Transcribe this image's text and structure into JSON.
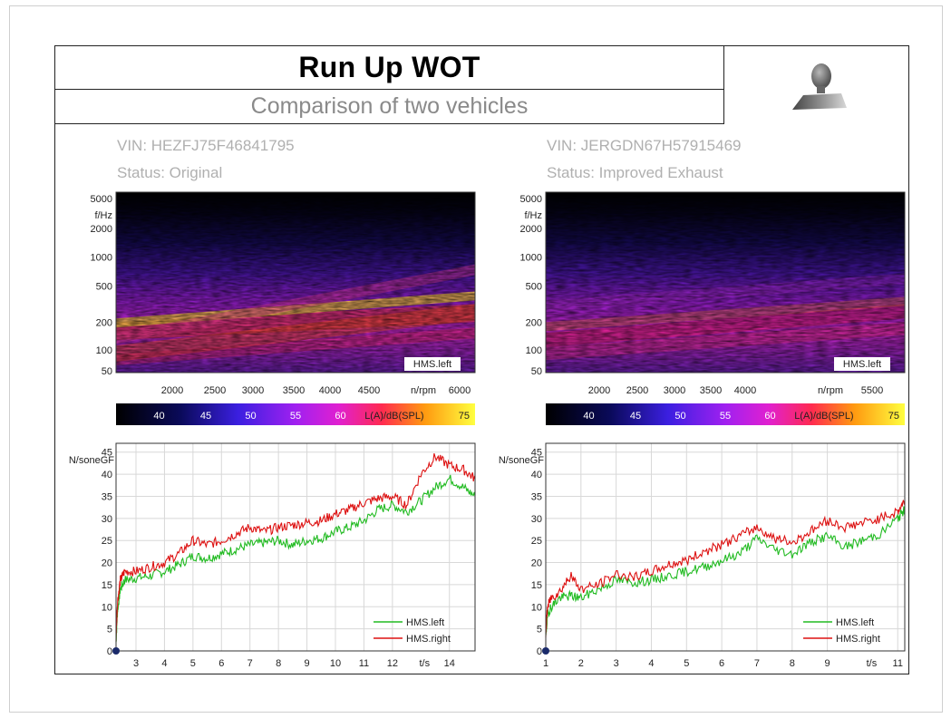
{
  "report": {
    "title": "Run Up WOT",
    "subtitle": "Comparison of two vehicles"
  },
  "vehicles": [
    {
      "vin": "VIN: HEZFJ75F46841795",
      "status": "Status: Original"
    },
    {
      "vin": "VIN: JERGDN67H57915469",
      "status": "Status: Improved Exhaust"
    }
  ],
  "colorbar": {
    "ticks": [
      "40",
      "45",
      "50",
      "55",
      "60"
    ],
    "unit_label": "L(A)/dB(SPL)",
    "max_label": "75"
  },
  "chart_data": [
    {
      "type": "heatmap",
      "panel": "left",
      "channel_label": "HMS.left",
      "ylabel": "f/Hz",
      "yticks": [
        "5000",
        "2000",
        "1000",
        "500",
        "200",
        "100",
        "50"
      ],
      "xlabel": "n/rpm",
      "xticks": [
        "2000",
        "2500",
        "3000",
        "3500",
        "4000",
        "4500",
        "6000"
      ],
      "zrange": [
        35,
        75
      ],
      "zunit": "L(A)/dB(SPL)"
    },
    {
      "type": "heatmap",
      "panel": "right",
      "channel_label": "HMS.left",
      "ylabel": "f/Hz",
      "yticks": [
        "5000",
        "2000",
        "1000",
        "500",
        "200",
        "100",
        "50"
      ],
      "xlabel": "n/rpm",
      "xticks": [
        "2000",
        "2500",
        "3000",
        "3500",
        "4000",
        "5500"
      ],
      "zrange": [
        35,
        75
      ],
      "zunit": "L(A)/dB(SPL)"
    },
    {
      "type": "line",
      "panel": "left",
      "ylabel": "N/soneGF",
      "xlabel": "t/s",
      "yticks": [
        "0",
        "5",
        "10",
        "15",
        "20",
        "25",
        "30",
        "35",
        "40",
        "45"
      ],
      "xticks": [
        "3",
        "4",
        "5",
        "6",
        "7",
        "8",
        "9",
        "10",
        "11",
        "12",
        "14"
      ],
      "xlim": [
        2.3,
        14.9
      ],
      "ylim": [
        0,
        47
      ],
      "grid": true,
      "legend": "bottom-right",
      "series": [
        {
          "name": "HMS.left",
          "color": "#22bb22",
          "x": [
            2.3,
            2.35,
            2.45,
            2.6,
            3,
            3.5,
            4,
            4.5,
            5,
            5.5,
            6,
            6.5,
            7,
            7.5,
            8,
            8.5,
            9,
            9.5,
            10,
            10.5,
            11,
            11.5,
            12,
            12.5,
            13,
            13.5,
            14,
            14.5,
            14.9
          ],
          "y": [
            2,
            9,
            14,
            16,
            16.5,
            17,
            18,
            19.5,
            21.5,
            21,
            22,
            23,
            24,
            24.5,
            25,
            24,
            25,
            25.5,
            27,
            28,
            29.5,
            32,
            33,
            31.5,
            34,
            37,
            39,
            37,
            35
          ]
        },
        {
          "name": "HMS.right",
          "color": "#dd1111",
          "x": [
            2.3,
            2.35,
            2.45,
            2.6,
            3,
            3.5,
            4,
            4.5,
            5,
            5.5,
            6,
            6.5,
            7,
            7.5,
            8,
            8.5,
            9,
            9.5,
            10,
            10.5,
            11,
            11.5,
            12,
            12.5,
            13,
            13.5,
            14,
            14.5,
            14.9
          ],
          "y": [
            3,
            11,
            16,
            18,
            18,
            19,
            20,
            22,
            25,
            24,
            25,
            26.5,
            28,
            27,
            28,
            28.5,
            29,
            29.5,
            31,
            32,
            33.5,
            34.5,
            35,
            33,
            40,
            44,
            42,
            41,
            39
          ]
        }
      ]
    },
    {
      "type": "line",
      "panel": "right",
      "ylabel": "N/soneGF",
      "xlabel": "t/s",
      "yticks": [
        "0",
        "5",
        "10",
        "15",
        "20",
        "25",
        "30",
        "35",
        "40",
        "45"
      ],
      "xticks": [
        "1",
        "2",
        "3",
        "4",
        "5",
        "6",
        "7",
        "8",
        "9",
        "11"
      ],
      "xlim": [
        1,
        11.2
      ],
      "ylim": [
        0,
        47
      ],
      "grid": true,
      "legend": "bottom-right",
      "series": [
        {
          "name": "HMS.left",
          "color": "#22bb22",
          "x": [
            1,
            1.05,
            1.15,
            1.4,
            1.7,
            2,
            2.5,
            3,
            3.5,
            4,
            4.5,
            5,
            5.5,
            6,
            6.5,
            7,
            7.5,
            8,
            8.5,
            9,
            9.5,
            10,
            10.5,
            11,
            11.2
          ],
          "y": [
            3,
            8,
            10,
            12,
            12.5,
            12,
            14,
            16,
            15.5,
            16,
            17,
            18,
            19,
            20.5,
            22,
            25.5,
            23,
            22,
            24.5,
            26,
            23.5,
            25,
            26.5,
            30,
            32
          ]
        },
        {
          "name": "HMS.right",
          "color": "#dd1111",
          "x": [
            1,
            1.05,
            1.15,
            1.4,
            1.7,
            2,
            2.5,
            3,
            3.5,
            4,
            4.5,
            5,
            5.5,
            6,
            6.5,
            7,
            7.5,
            8,
            8.5,
            9,
            9.5,
            10,
            10.5,
            11,
            11.2
          ],
          "y": [
            4,
            10,
            12,
            13.5,
            17,
            14,
            15,
            17.5,
            16.5,
            18,
            19.5,
            20.5,
            22.5,
            24,
            26,
            28,
            25.5,
            24.5,
            27,
            29.5,
            28,
            29,
            30,
            31.5,
            34
          ]
        }
      ]
    }
  ]
}
